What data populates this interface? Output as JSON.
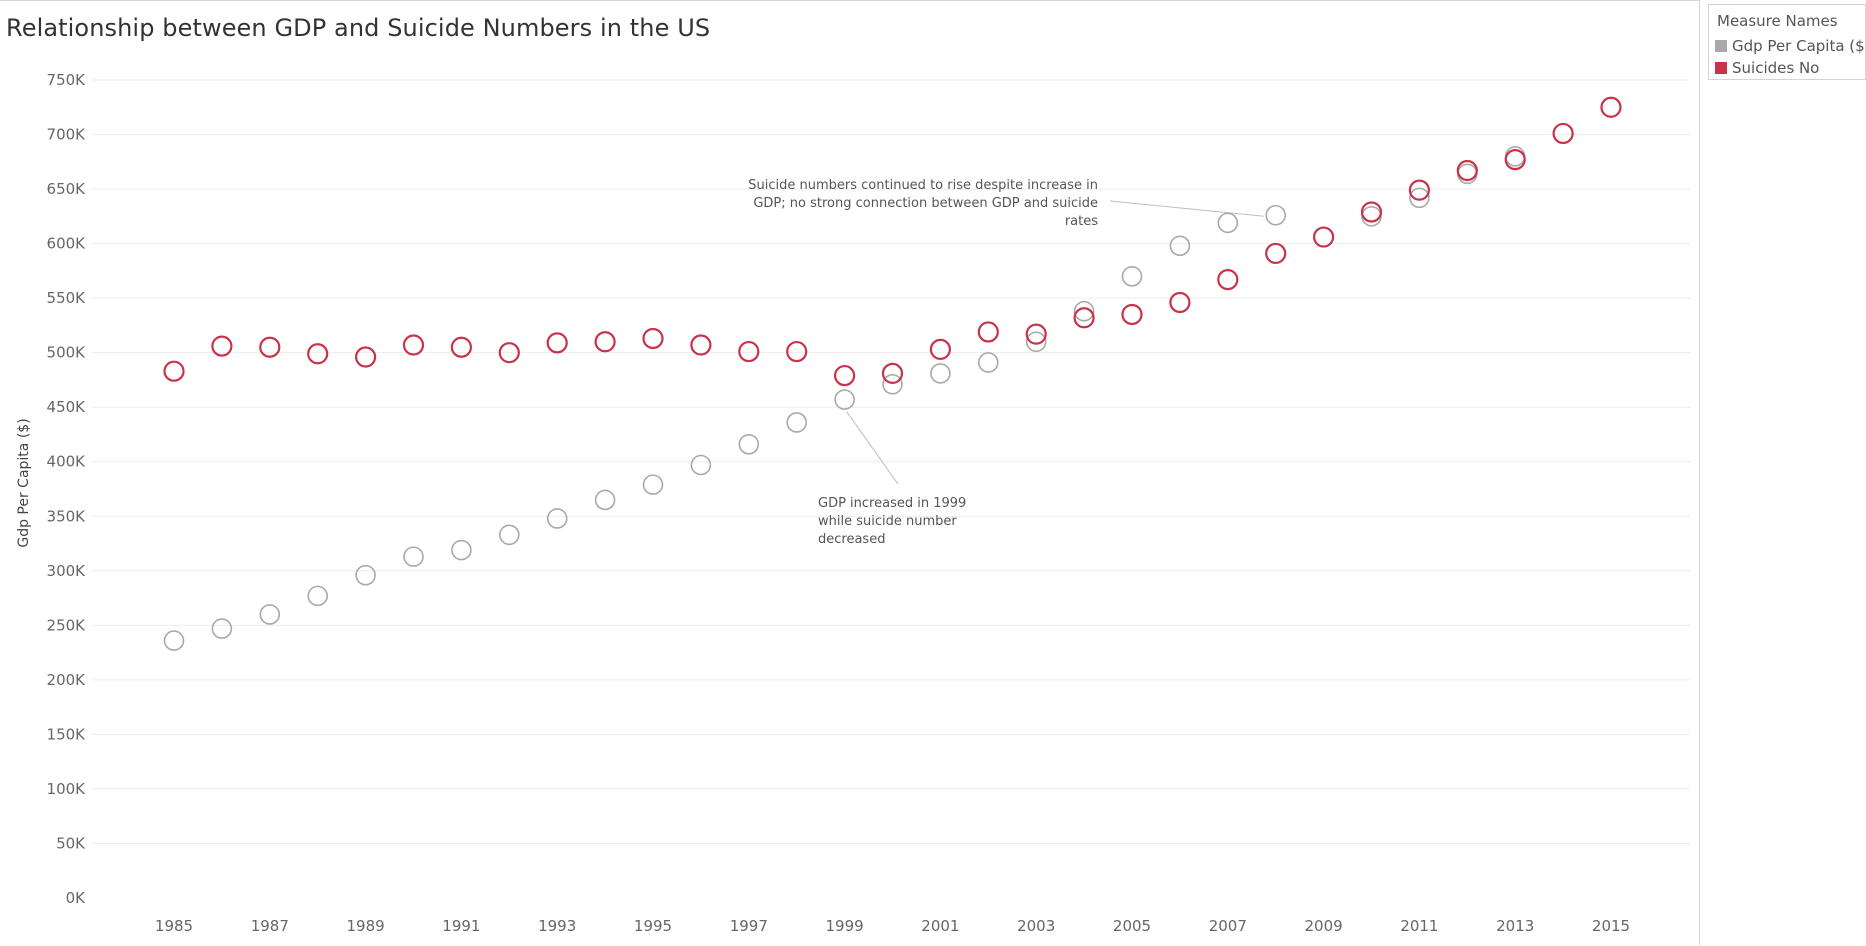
{
  "chart_data": {
    "type": "scatter",
    "title": "Relationship between GDP and Suicide Numbers in the US",
    "xlabel": "",
    "ylabel": "Gdp Per Capita ($)",
    "ylim": [
      0,
      750000
    ],
    "y_ticks": [
      "0K",
      "50K",
      "100K",
      "150K",
      "200K",
      "250K",
      "300K",
      "350K",
      "400K",
      "450K",
      "500K",
      "550K",
      "600K",
      "650K",
      "700K",
      "750K"
    ],
    "x_ticks": [
      "1985",
      "1987",
      "1989",
      "1991",
      "1993",
      "1995",
      "1997",
      "1999",
      "2001",
      "2003",
      "2005",
      "2007",
      "2009",
      "2011",
      "2013",
      "2015"
    ],
    "x": [
      1985,
      1986,
      1987,
      1988,
      1989,
      1990,
      1991,
      1992,
      1993,
      1994,
      1995,
      1996,
      1997,
      1998,
      1999,
      2000,
      2001,
      2002,
      2003,
      2004,
      2005,
      2006,
      2007,
      2008,
      2009,
      2010,
      2011,
      2012,
      2013,
      2014,
      2015
    ],
    "grid": true,
    "legend_position": "right",
    "series": [
      {
        "name": "Gdp Per Capita ($)",
        "color": "#a9a9a9",
        "values": [
          236000,
          247000,
          260000,
          277000,
          296000,
          313000,
          319000,
          333000,
          348000,
          365000,
          379000,
          397000,
          416000,
          436000,
          457000,
          471000,
          481000,
          491000,
          510000,
          538000,
          570000,
          598000,
          619000,
          626000,
          606000,
          625000,
          642000,
          664000,
          680000,
          701000,
          725000
        ]
      },
      {
        "name": "Suicides No",
        "color": "#c8334a",
        "values": [
          483000,
          506000,
          505000,
          499000,
          496000,
          507000,
          505000,
          500000,
          509000,
          510000,
          513000,
          507000,
          501000,
          501000,
          479000,
          481000,
          503000,
          519000,
          517000,
          532000,
          535000,
          546000,
          567000,
          591000,
          606000,
          629000,
          649000,
          667000,
          677000,
          701000,
          725000
        ]
      }
    ],
    "annotations": [
      {
        "lines": [
          "Suicide numbers continued to rise despite increase in",
          "GDP; no strong connection between GDP and suicide",
          "rates"
        ],
        "target_x": 2008,
        "target_y": 626000
      },
      {
        "lines": [
          "GDP increased in 1999",
          "while suicide number",
          "decreased"
        ],
        "target_x": 1999,
        "target_y": 457000
      }
    ]
  },
  "legend": {
    "title": "Measure Names",
    "items": [
      {
        "label": "Gdp Per Capita ($)",
        "color": "#a9a9a9"
      },
      {
        "label": "Suicides No",
        "color": "#c8334a"
      }
    ]
  }
}
